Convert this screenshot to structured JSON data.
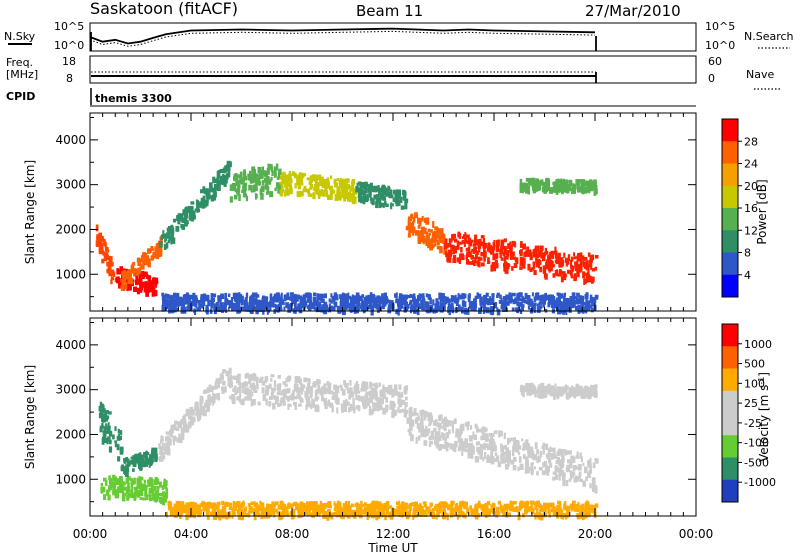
{
  "header": {
    "station": "Saskatoon (fitACF)",
    "beam": "Beam 11",
    "date": "27/Mar/2010"
  },
  "noise_panel": {
    "left_label": "N.Sky",
    "left_ticks": [
      "10^5",
      "10^0"
    ],
    "right_ticks": [
      "10^5",
      "10^0"
    ],
    "right_label": "N.Search"
  },
  "freq_panel": {
    "left_label_1": "Freq.",
    "left_label_2": "[MHz]",
    "left_ticks": [
      "18",
      "8"
    ],
    "right_ticks": [
      "60",
      "0"
    ],
    "right_label": "Nave"
  },
  "cpid": {
    "label": "CPID",
    "value": "themis 3300"
  },
  "chart_data": [
    {
      "type": "heatmap",
      "panel": "power",
      "ylabel": "Slant Range [km]",
      "yticks": [
        "4000",
        "3000",
        "2000",
        "1000"
      ],
      "ylim": [
        180,
        4600
      ],
      "xlim_hours": [
        0,
        24
      ],
      "colorbar_label": "Power [dB]",
      "colorbar_ticks": [
        "28",
        "24",
        "20",
        "16",
        "12",
        "8",
        "4"
      ],
      "colorbar_colors": [
        "#0000ff",
        "#2e57c7",
        "#2e8e66",
        "#57b050",
        "#c8c800",
        "#f5a000",
        "#ff6000",
        "#ff0000"
      ],
      "scatter_bands": [
        {
          "t0": 0.15,
          "t1": 1.0,
          "r_start": 2000,
          "r_end": 900,
          "width": 350,
          "color": "#ff4400"
        },
        {
          "t0": 1.0,
          "t1": 2.6,
          "r_start": 1000,
          "r_end": 800,
          "width": 260,
          "color": "#ff0000"
        },
        {
          "t0": 1.2,
          "t1": 2.8,
          "r_start": 900,
          "r_end": 1700,
          "width": 220,
          "color": "#ff6000"
        },
        {
          "t0": 2.7,
          "t1": 5.5,
          "r_start": 1700,
          "r_end": 3400,
          "width": 260,
          "color": "#2e8e66"
        },
        {
          "t0": 5.5,
          "t1": 7.5,
          "r_start": 3000,
          "r_end": 3200,
          "width": 400,
          "color": "#57b050"
        },
        {
          "t0": 7.5,
          "t1": 10.5,
          "r_start": 3100,
          "r_end": 2900,
          "width": 300,
          "color": "#c8c800"
        },
        {
          "t0": 10.5,
          "t1": 12.5,
          "r_start": 2900,
          "r_end": 2700,
          "width": 260,
          "color": "#2e8e66"
        },
        {
          "t0": 12.5,
          "t1": 14.0,
          "r_start": 2200,
          "r_end": 1800,
          "width": 350,
          "color": "#ff6000"
        },
        {
          "t0": 14.0,
          "t1": 20.0,
          "r_start": 1700,
          "r_end": 1150,
          "width": 400,
          "color": "#ff2000"
        },
        {
          "t0": 17.0,
          "t1": 20.0,
          "r_start": 3050,
          "r_end": 3000,
          "width": 150,
          "color": "#57b050"
        },
        {
          "t0": 2.8,
          "t1": 20.0,
          "r_start": 400,
          "r_end": 400,
          "width": 250,
          "color": "#2e57c7"
        }
      ]
    },
    {
      "type": "heatmap",
      "panel": "velocity",
      "ylabel": "Slant Range [km]",
      "yticks": [
        "4000",
        "3000",
        "2000",
        "1000"
      ],
      "ylim": [
        180,
        4600
      ],
      "xlim_hours": [
        0,
        24
      ],
      "xticks": [
        "00:00",
        "04:00",
        "08:00",
        "12:00",
        "16:00",
        "20:00",
        "00:00"
      ],
      "xlabel": "Time UT",
      "colorbar_label": "Velocity [m s^-1]",
      "colorbar_ticks": [
        "1000",
        "500",
        "100",
        "25",
        "-25",
        "-100",
        "-500",
        "-1000"
      ],
      "colorbar_colors": [
        "#1f3fbf",
        "#2e8e66",
        "#66cc33",
        "#cccccc",
        "#cccccc",
        "#ffaa00",
        "#ff6000",
        "#ff0000"
      ],
      "scatter_bands": [
        {
          "t0": 0.3,
          "t1": 1.2,
          "r_start": 2400,
          "r_end": 1800,
          "width": 500,
          "color": "#2e8e66"
        },
        {
          "t0": 0.4,
          "t1": 3.0,
          "r_start": 900,
          "r_end": 800,
          "width": 300,
          "color": "#66cc33"
        },
        {
          "t0": 1.2,
          "t1": 2.6,
          "r_start": 1300,
          "r_end": 1600,
          "width": 200,
          "color": "#2e8e66"
        },
        {
          "t0": 2.7,
          "t1": 5.5,
          "r_start": 1700,
          "r_end": 3400,
          "width": 300,
          "color": "#cccccc"
        },
        {
          "t0": 5.5,
          "t1": 12.5,
          "r_start": 3100,
          "r_end": 2800,
          "width": 400,
          "color": "#cccccc"
        },
        {
          "t0": 12.5,
          "t1": 20.0,
          "r_start": 2300,
          "r_end": 1150,
          "width": 450,
          "color": "#cccccc"
        },
        {
          "t0": 17.0,
          "t1": 20.0,
          "r_start": 3050,
          "r_end": 3000,
          "width": 150,
          "color": "#cccccc"
        },
        {
          "t0": 3.0,
          "t1": 20.0,
          "r_start": 350,
          "r_end": 350,
          "width": 220,
          "color": "#ffaa00"
        }
      ]
    }
  ],
  "noise_trace_points": [
    [
      0,
      1.5
    ],
    [
      0.5,
      1.0
    ],
    [
      1,
      1.2
    ],
    [
      1.5,
      0.8
    ],
    [
      2,
      1.0
    ],
    [
      2.5,
      1.4
    ],
    [
      3,
      1.8
    ],
    [
      4,
      2.2
    ],
    [
      6,
      2.3
    ],
    [
      8,
      2.2
    ],
    [
      10,
      2.3
    ],
    [
      12,
      2.4
    ],
    [
      14,
      2.2
    ],
    [
      15,
      2.3
    ],
    [
      16,
      2.2
    ],
    [
      18,
      2.1
    ],
    [
      20,
      2.0
    ]
  ]
}
